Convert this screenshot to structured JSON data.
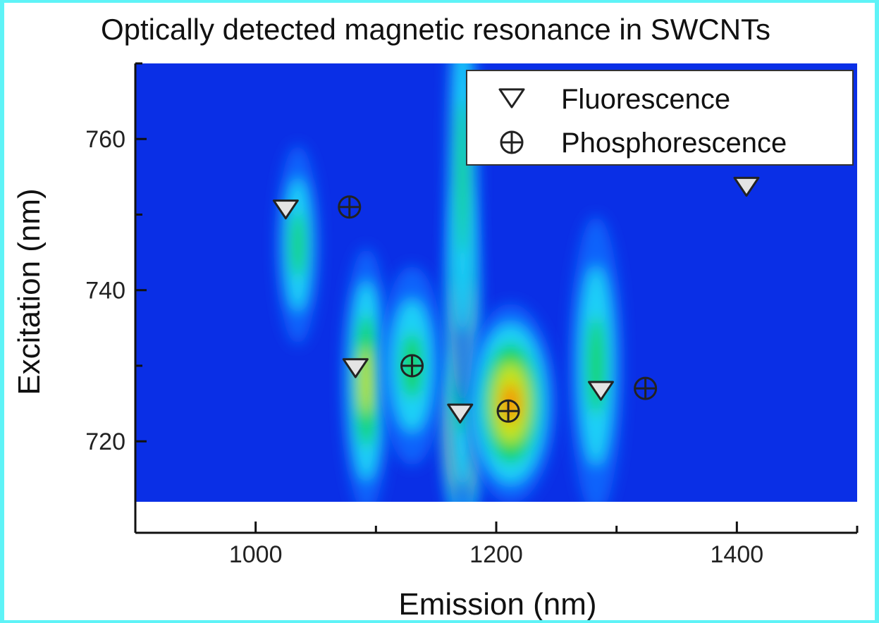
{
  "chart_data": {
    "type": "heatmap",
    "title": "Optically detected magnetic resonance in SWCNTs",
    "xlabel": "Emission (nm)",
    "ylabel": "Excitation (nm)",
    "xlim": [
      900,
      1500
    ],
    "ylim": [
      712,
      770
    ],
    "x_ticks": [
      1000,
      1200,
      1400
    ],
    "y_ticks": [
      720,
      740,
      760
    ],
    "grid": false,
    "legend_position": "top-right",
    "colormap": [
      "#0015e8",
      "#0a6dff",
      "#21e4f6",
      "#18d640",
      "#e6e60e",
      "#ff7a00",
      "#e01000"
    ],
    "background_color": "#0a2fe6",
    "hotspots": [
      {
        "x": 1035,
        "y": 746,
        "sx": 8,
        "sy": 6,
        "intensity": 0.35
      },
      {
        "x": 1092,
        "y": 728,
        "sx": 9,
        "sy": 8,
        "intensity": 0.55
      },
      {
        "x": 1130,
        "y": 730,
        "sx": 12,
        "sy": 6,
        "intensity": 0.32
      },
      {
        "x": 1172,
        "y": 721,
        "sx": 8,
        "sy": 6,
        "intensity": 1.0
      },
      {
        "x": 1172,
        "y": 734,
        "sx": 7,
        "sy": 12,
        "intensity": 0.45
      },
      {
        "x": 1212,
        "y": 725,
        "sx": 17,
        "sy": 6,
        "intensity": 0.6
      },
      {
        "x": 1283,
        "y": 730,
        "sx": 10,
        "sy": 9,
        "intensity": 0.34
      },
      {
        "x": 1172,
        "y": 755,
        "sx": 6,
        "sy": 14,
        "intensity": 0.25
      }
    ],
    "series": [
      {
        "name": "Fluorescence",
        "marker": "triangle-down",
        "color": "#e4e4e4",
        "points": [
          [
            1025,
            751
          ],
          [
            1083,
            730
          ],
          [
            1170,
            724
          ],
          [
            1287,
            727
          ],
          [
            1408,
            754
          ]
        ]
      },
      {
        "name": "Phosphorescence",
        "marker": "circle-plus",
        "color": "#2a2a2a",
        "points": [
          [
            1078,
            751
          ],
          [
            1130,
            730
          ],
          [
            1210,
            724
          ],
          [
            1324,
            727
          ]
        ]
      }
    ]
  }
}
